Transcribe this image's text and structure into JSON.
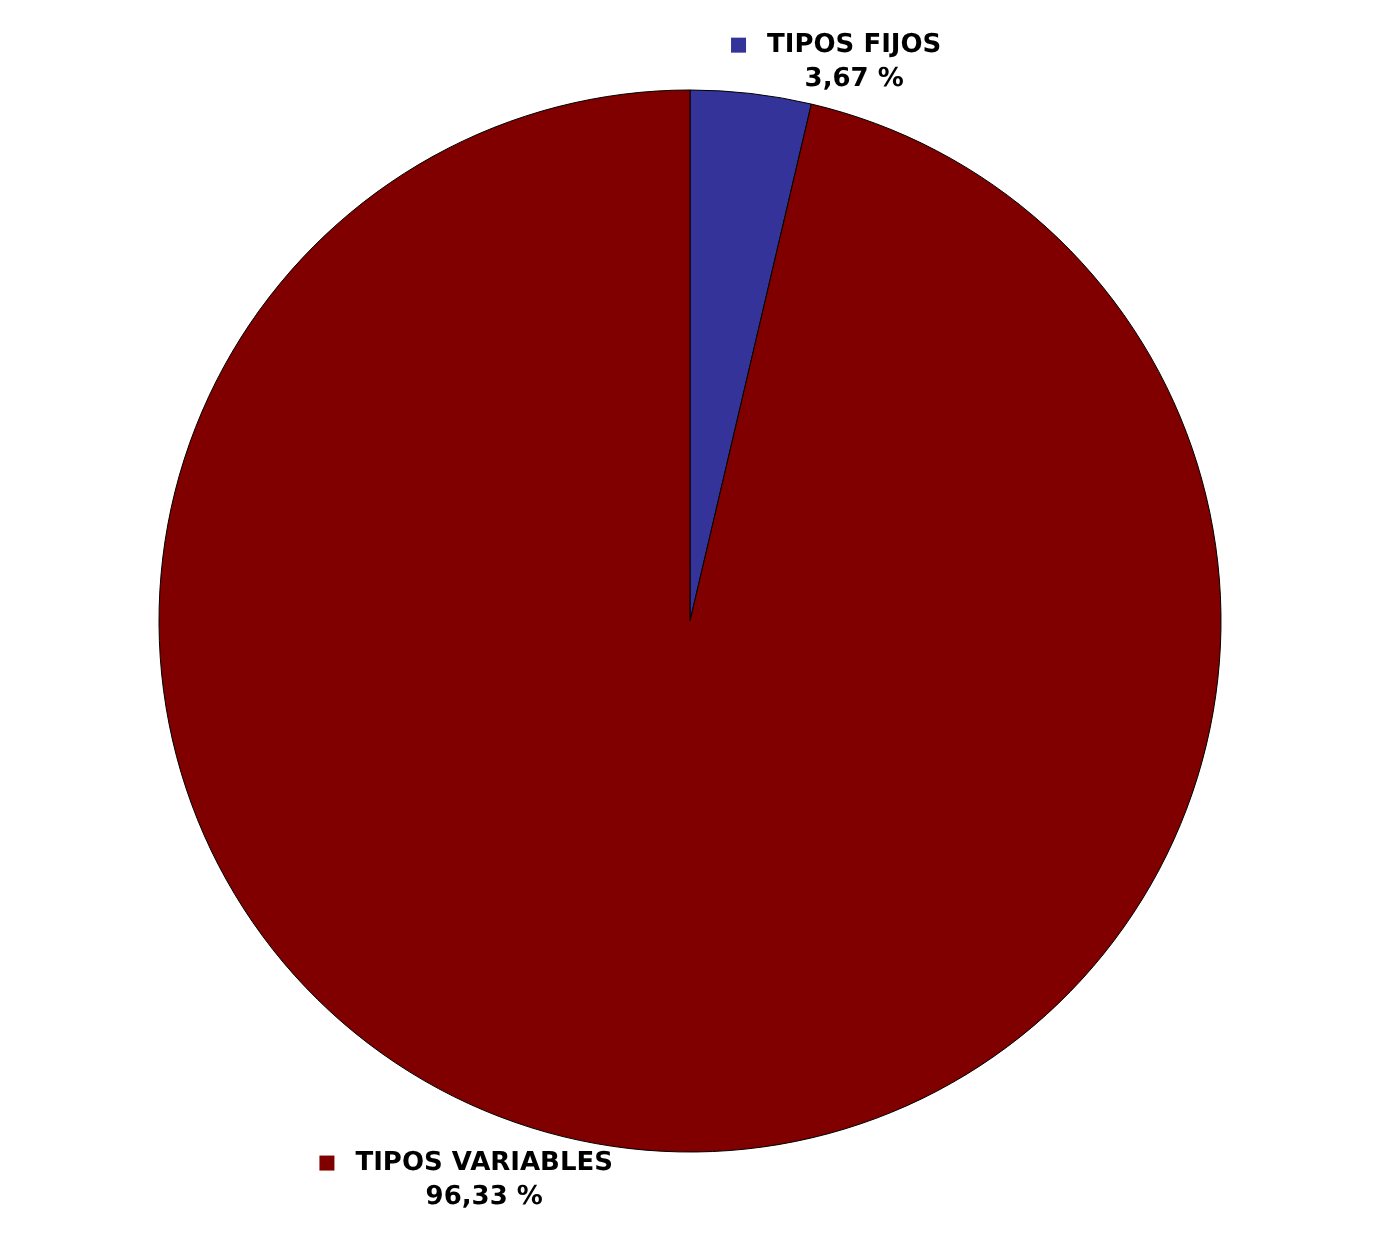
{
  "chart_data": {
    "type": "pie",
    "categories": [
      "TIPOS FIJOS",
      "TIPOS VARIABLES"
    ],
    "values": [
      3.67,
      96.33
    ],
    "colors": [
      "#333399",
      "#800000"
    ],
    "value_labels": [
      "3,67 %",
      "96,33 %"
    ]
  }
}
